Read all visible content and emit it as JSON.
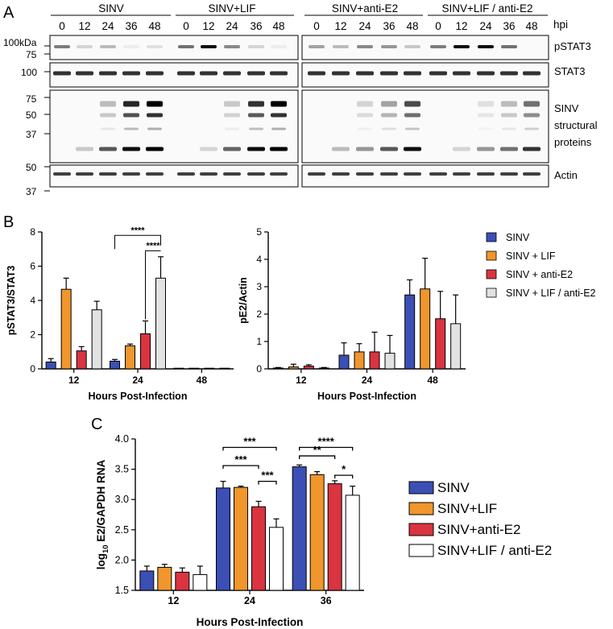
{
  "panel_a": {
    "label": "A",
    "groups": [
      "SINV",
      "SINV+LIF",
      "SINV+anti-E2",
      "SINV+LIF / anti-E2"
    ],
    "timepoints": [
      "0",
      "12",
      "24",
      "36",
      "48"
    ],
    "hpi_label": "hpi",
    "blots": [
      {
        "name": "pSTAT3",
        "markers": [
          "100kDa",
          "75"
        ]
      },
      {
        "name": "STAT3",
        "markers": [
          "100"
        ]
      },
      {
        "name": "SINV structural proteins",
        "lines": [
          "SINV",
          "structural",
          "proteins"
        ],
        "markers": [
          "75",
          "50",
          "37"
        ]
      },
      {
        "name": "Actin",
        "markers": [
          "50",
          "37"
        ]
      }
    ]
  },
  "panel_b_label": "B",
  "panel_c_label": "C",
  "chart_data": [
    {
      "type": "bar",
      "panel": "B-left",
      "ylabel": "pSTAT3/STAT3",
      "xlabel": "Hours Post-Infection",
      "categories": [
        "12",
        "24",
        "48"
      ],
      "ylim": [
        0,
        8
      ],
      "yticks": [
        0,
        2,
        4,
        6,
        8
      ],
      "series": [
        {
          "name": "SINV",
          "values": [
            0.4,
            0.45,
            0.0
          ],
          "errors": [
            0.2,
            0.1,
            0.0
          ]
        },
        {
          "name": "SINV + LIF",
          "values": [
            4.65,
            1.35,
            0.0
          ],
          "errors": [
            0.65,
            0.1,
            0.0
          ]
        },
        {
          "name": "SINV + anti-E2",
          "values": [
            1.05,
            2.05,
            0.0
          ],
          "errors": [
            0.25,
            0.75,
            0.0
          ]
        },
        {
          "name": "SINV + LIF / anti-E2",
          "values": [
            3.45,
            5.3,
            0.03
          ],
          "errors": [
            0.5,
            1.25,
            0.0
          ]
        }
      ],
      "significance": [
        {
          "from": 0,
          "to": 3,
          "category": 1,
          "label": "****"
        },
        {
          "from": 2,
          "to": 3,
          "category": 1,
          "label": "****"
        }
      ]
    },
    {
      "type": "bar",
      "panel": "B-right",
      "ylabel": "pE2/Actin",
      "xlabel": "Hours Post-Infection",
      "categories": [
        "12",
        "24",
        "48"
      ],
      "ylim": [
        0,
        5
      ],
      "yticks": [
        0,
        1,
        2,
        3,
        4,
        5
      ],
      "series": [
        {
          "name": "SINV",
          "values": [
            0.03,
            0.5,
            2.7
          ],
          "errors": [
            0.02,
            0.45,
            0.55
          ]
        },
        {
          "name": "SINV + LIF",
          "values": [
            0.07,
            0.62,
            2.92
          ],
          "errors": [
            0.1,
            0.3,
            1.12
          ]
        },
        {
          "name": "SINV + anti-E2",
          "values": [
            0.1,
            0.62,
            1.83
          ],
          "errors": [
            0.05,
            0.72,
            1.0
          ]
        },
        {
          "name": "SINV + LIF / anti-E2",
          "values": [
            0.03,
            0.57,
            1.65
          ],
          "errors": [
            0.02,
            0.65,
            1.05
          ]
        }
      ],
      "significance": []
    },
    {
      "type": "bar",
      "panel": "C",
      "ylabel_prefix": "log",
      "ylabel_sub": "10",
      "ylabel_suffix": " E2/GAPDH RNA",
      "xlabel": "Hours Post-Infection",
      "categories": [
        "12",
        "24",
        "36"
      ],
      "ylim": [
        1.5,
        4.0
      ],
      "yticks": [
        "1.5",
        "2.0",
        "2.5",
        "3.0",
        "3.5",
        "4.0"
      ],
      "series": [
        {
          "name": "SINV",
          "values": [
            1.82,
            3.19,
            3.54
          ],
          "errors": [
            0.08,
            0.11,
            0.03
          ]
        },
        {
          "name": "SINV+LIF",
          "values": [
            1.88,
            3.2,
            3.41
          ],
          "errors": [
            0.05,
            0.02,
            0.05
          ]
        },
        {
          "name": "SINV+anti-E2",
          "values": [
            1.8,
            2.88,
            3.26
          ],
          "errors": [
            0.07,
            0.09,
            0.05
          ]
        },
        {
          "name": "SINV+LIF / anti-E2",
          "values": [
            1.76,
            2.54,
            3.07
          ],
          "errors": [
            0.14,
            0.14,
            0.15
          ]
        }
      ],
      "significance": [
        {
          "from": 0,
          "to": 3,
          "category": 1,
          "label": "***"
        },
        {
          "from": 0,
          "to": 2,
          "category": 1,
          "label": "***"
        },
        {
          "from": 2,
          "to": 3,
          "category": 1,
          "label": "***"
        },
        {
          "from": 0,
          "to": 3,
          "category": 2,
          "label": "****"
        },
        {
          "from": 0,
          "to": 2,
          "category": 2,
          "label": "**"
        },
        {
          "from": 2,
          "to": 3,
          "category": 2,
          "label": "*"
        }
      ]
    }
  ],
  "legend": {
    "series_colors": [
      "#3b4fb5",
      "#f0962c",
      "#d9343f",
      "#e2e2e2"
    ],
    "b_items": [
      "SINV",
      "SINV + LIF",
      "SINV + anti-E2",
      "SINV + LIF / anti-E2"
    ],
    "c_items": [
      "SINV",
      "SINV+LIF",
      "SINV+anti-E2",
      "SINV+LIF / anti-E2"
    ]
  }
}
